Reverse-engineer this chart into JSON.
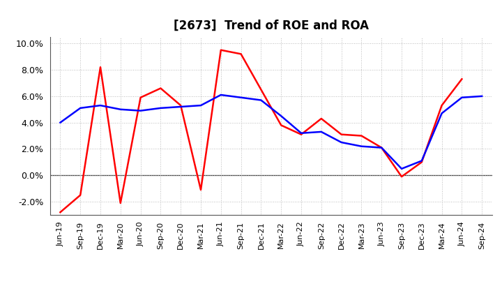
{
  "title": "[2673]  Trend of ROE and ROA",
  "x_labels": [
    "Jun-19",
    "Sep-19",
    "Dec-19",
    "Mar-20",
    "Jun-20",
    "Sep-20",
    "Dec-20",
    "Mar-21",
    "Jun-21",
    "Sep-21",
    "Dec-21",
    "Mar-22",
    "Jun-22",
    "Sep-22",
    "Dec-22",
    "Mar-23",
    "Jun-23",
    "Sep-23",
    "Dec-23",
    "Mar-24",
    "Jun-24",
    "Sep-24"
  ],
  "ROE": [
    -2.8,
    -1.5,
    8.2,
    -2.1,
    5.9,
    6.6,
    5.3,
    -1.1,
    9.5,
    9.2,
    6.5,
    3.8,
    3.1,
    4.3,
    3.1,
    3.0,
    2.1,
    -0.1,
    1.0,
    5.3,
    7.3,
    null
  ],
  "ROA": [
    4.0,
    5.1,
    5.3,
    5.0,
    4.9,
    5.1,
    5.2,
    5.3,
    6.1,
    5.9,
    5.7,
    4.5,
    3.2,
    3.3,
    2.5,
    2.2,
    2.1,
    0.5,
    1.1,
    4.7,
    5.9,
    6.0
  ],
  "ylim": [
    -3.0,
    10.5
  ],
  "yticks": [
    -2.0,
    0.0,
    2.0,
    4.0,
    6.0,
    8.0,
    10.0
  ],
  "roe_color": "#FF0000",
  "roa_color": "#0000FF",
  "bg_color": "#FFFFFF",
  "plot_bg_color": "#FFFFFF",
  "grid_color": "#BBBBBB",
  "line_width": 1.8,
  "title_fontsize": 12,
  "tick_fontsize": 8,
  "ytick_fontsize": 9
}
